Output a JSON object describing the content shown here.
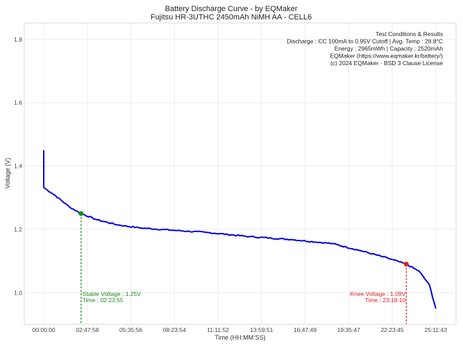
{
  "chart_data": {
    "type": "line",
    "title": "Battery Discharge Curve - by EQMaker",
    "subtitle": "Fujitsu HR-3UTHC 2450mAh NiMH AA - CELL6",
    "xlabel": "Time (HH:MM:SS)",
    "ylabel": "Voltage (V)",
    "xlim": [
      "-01:15:00",
      "26:30:00"
    ],
    "ylim": [
      0.9,
      1.852
    ],
    "grid": true,
    "x_ticks": [
      "00:00:00",
      "02:47:58",
      "05:35:56",
      "08:23:54",
      "11:11:52",
      "13:59:51",
      "16:47:49",
      "19:35:47",
      "22:23:45",
      "25:11:43"
    ],
    "y_ticks": [
      "1.0",
      "1.2",
      "1.4",
      "1.6",
      "1.8"
    ],
    "series_color": "#0000dd",
    "series": [
      {
        "x": [
          "00:00:00",
          "00:00:00",
          "00:45:36",
          "01:39:00",
          "02:23:55",
          "03:25:48",
          "04:45:36",
          "06:06:00",
          "08:19:12",
          "10:33:00",
          "13:13:12",
          "15:53:24",
          "18:33:36",
          "20:20:24",
          "22:07:12",
          "23:18:10",
          "24:07:12",
          "24:47:24",
          "25:11:43"
        ],
        "y": [
          1.45,
          1.332,
          1.306,
          1.271,
          1.25,
          1.23,
          1.214,
          1.205,
          1.197,
          1.19,
          1.177,
          1.168,
          1.155,
          1.133,
          1.109,
          1.09,
          1.068,
          1.024,
          0.95
        ]
      }
    ],
    "markers": [
      {
        "name": "stable",
        "time": "02:23:55",
        "voltage": 1.25,
        "color": "#1a8a1a",
        "label1": "Stable Voltage : 1.25V",
        "label2": "Time : 02:23:55",
        "align": "left"
      },
      {
        "name": "knee",
        "time": "23:18:10",
        "voltage": 1.09,
        "color": "#dd2222",
        "label1": "Knee Voltage : 1.09V",
        "label2": "Time : 23:18:10",
        "align": "right"
      }
    ],
    "info_box": [
      "Test Conditions & Results",
      "Discharge : CC 100mA to 0.95V Cutoff | Avg. Temp : 28.8°C",
      "Energy : 2965mWh | Capacity : 2520mAh",
      "EQMaker (https://www.eqmaker.kr/battery/)",
      "(c) 2024 EQMaker - BSD 3 Clause License"
    ]
  }
}
